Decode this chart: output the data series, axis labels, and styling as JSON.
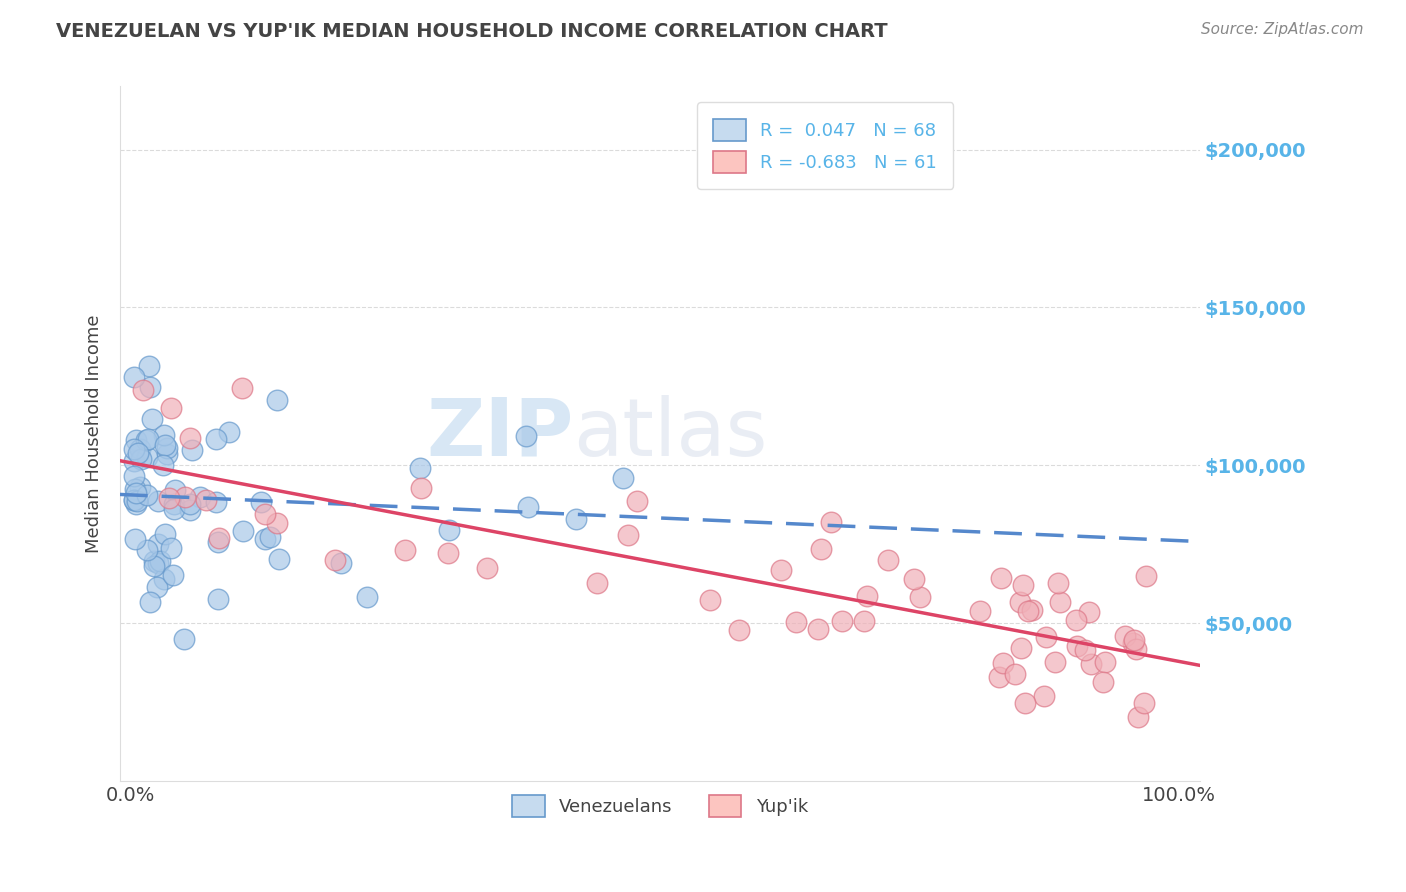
{
  "title": "VENEZUELAN VS YUP'IK MEDIAN HOUSEHOLD INCOME CORRELATION CHART",
  "source_text": "Source: ZipAtlas.com",
  "ylabel": "Median Household Income",
  "legend_labels": [
    "Venezuelans",
    "Yup'ik"
  ],
  "r_venezuelan": 0.047,
  "n_venezuelan": 68,
  "r_yupik": -0.683,
  "n_yupik": 61,
  "blue_scatter_color": "#a8c8e8",
  "blue_scatter_edge": "#6699cc",
  "pink_scatter_color": "#f0b0b8",
  "pink_scatter_edge": "#dd7788",
  "blue_line_color": "#5588cc",
  "pink_line_color": "#dd4466",
  "legend_blue_fill": "#c6dbef",
  "legend_pink_fill": "#fcc5c0",
  "legend_blue_edge": "#6699cc",
  "legend_pink_edge": "#dd7788",
  "xlim": [
    -0.01,
    1.02
  ],
  "ylim": [
    0,
    220000
  ],
  "y_ticks": [
    50000,
    100000,
    150000,
    200000
  ],
  "y_tick_labels": [
    "$50,000",
    "$100,000",
    "$150,000",
    "$200,000"
  ],
  "x_tick_labels": [
    "0.0%",
    "100.0%"
  ],
  "watermark_zip": "ZIP",
  "watermark_atlas": "atlas",
  "background_color": "#ffffff",
  "grid_color": "#cccccc",
  "title_color": "#444444",
  "ylabel_color": "#444444",
  "tick_color": "#58b4e8",
  "source_color": "#888888"
}
